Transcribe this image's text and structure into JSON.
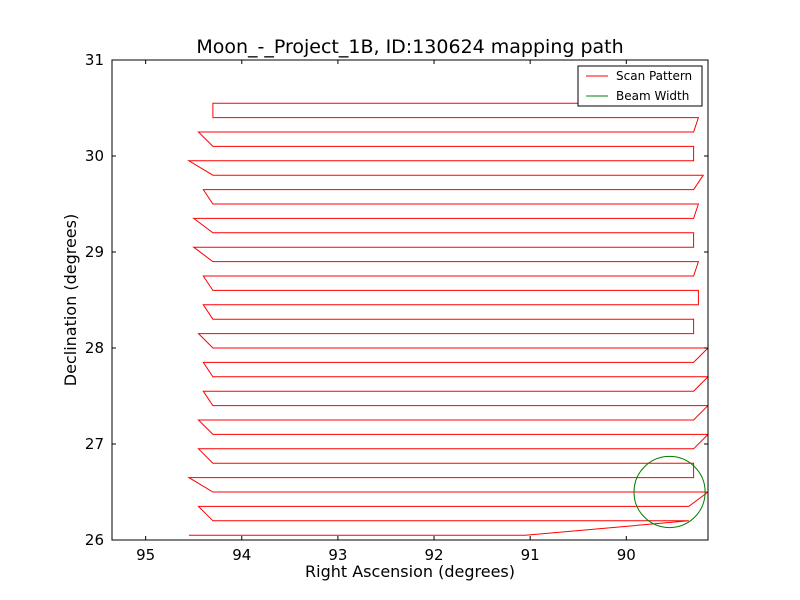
{
  "chart_data": {
    "type": "line",
    "title": "Moon_-_Project_1B, ID:130624 mapping path",
    "xlabel": "Right Ascension (degrees)",
    "ylabel": "Declination (degrees)",
    "xlim": [
      95.35,
      89.15
    ],
    "ylim": [
      26,
      31
    ],
    "x_inverted": true,
    "grid": false,
    "legend_position": "top-right",
    "xticks": [
      95,
      94,
      93,
      92,
      91,
      90
    ],
    "yticks": [
      26,
      27,
      28,
      29,
      30,
      31
    ],
    "xtick_labels": [
      "95",
      "94",
      "93",
      "92",
      "91",
      "90"
    ],
    "ytick_labels": [
      "26",
      "27",
      "28",
      "29",
      "30",
      "31"
    ],
    "series": [
      {
        "name": "Scan Pattern",
        "color": "#ff0000",
        "rows": [
          {
            "dec": 26.05,
            "x_start": 94.55,
            "x_end": 91.05
          },
          {
            "dec": 26.2,
            "x_start": 94.3,
            "x_end": 89.35
          },
          {
            "dec": 26.35,
            "x_start": 94.45,
            "x_end": 89.35
          },
          {
            "dec": 26.5,
            "x_start": 94.3,
            "x_end": 89.15
          },
          {
            "dec": 26.65,
            "x_start": 94.55,
            "x_end": 89.3
          },
          {
            "dec": 26.8,
            "x_start": 94.3,
            "x_end": 89.3
          },
          {
            "dec": 26.95,
            "x_start": 94.45,
            "x_end": 89.3
          },
          {
            "dec": 27.1,
            "x_start": 94.3,
            "x_end": 89.15
          },
          {
            "dec": 27.25,
            "x_start": 94.45,
            "x_end": 89.3
          },
          {
            "dec": 27.4,
            "x_start": 94.3,
            "x_end": 89.15
          },
          {
            "dec": 27.55,
            "x_start": 94.4,
            "x_end": 89.3
          },
          {
            "dec": 27.7,
            "x_start": 94.3,
            "x_end": 89.15
          },
          {
            "dec": 27.85,
            "x_start": 94.4,
            "x_end": 89.3
          },
          {
            "dec": 28.0,
            "x_start": 94.3,
            "x_end": 89.15
          },
          {
            "dec": 28.15,
            "x_start": 94.45,
            "x_end": 89.3
          },
          {
            "dec": 28.3,
            "x_start": 94.3,
            "x_end": 89.3
          },
          {
            "dec": 28.45,
            "x_start": 94.4,
            "x_end": 89.25
          },
          {
            "dec": 28.6,
            "x_start": 94.3,
            "x_end": 89.25
          },
          {
            "dec": 28.75,
            "x_start": 94.4,
            "x_end": 89.3
          },
          {
            "dec": 28.9,
            "x_start": 94.3,
            "x_end": 89.25
          },
          {
            "dec": 29.05,
            "x_start": 94.5,
            "x_end": 89.3
          },
          {
            "dec": 29.2,
            "x_start": 94.3,
            "x_end": 89.3
          },
          {
            "dec": 29.35,
            "x_start": 94.5,
            "x_end": 89.3
          },
          {
            "dec": 29.5,
            "x_start": 94.3,
            "x_end": 89.25
          },
          {
            "dec": 29.65,
            "x_start": 94.4,
            "x_end": 89.3
          },
          {
            "dec": 29.8,
            "x_start": 94.3,
            "x_end": 89.2
          },
          {
            "dec": 29.95,
            "x_start": 94.55,
            "x_end": 89.3
          },
          {
            "dec": 30.1,
            "x_start": 94.3,
            "x_end": 89.3
          },
          {
            "dec": 30.25,
            "x_start": 94.45,
            "x_end": 89.3
          },
          {
            "dec": 30.4,
            "x_start": 94.3,
            "x_end": 89.25
          },
          {
            "dec": 30.55,
            "x_start": 94.3,
            "x_end": 89.25
          }
        ]
      },
      {
        "name": "Beam Width",
        "color": "#008000",
        "shape": "circle",
        "center": [
          89.55,
          26.5
        ],
        "radius_deg": 0.37
      }
    ]
  }
}
